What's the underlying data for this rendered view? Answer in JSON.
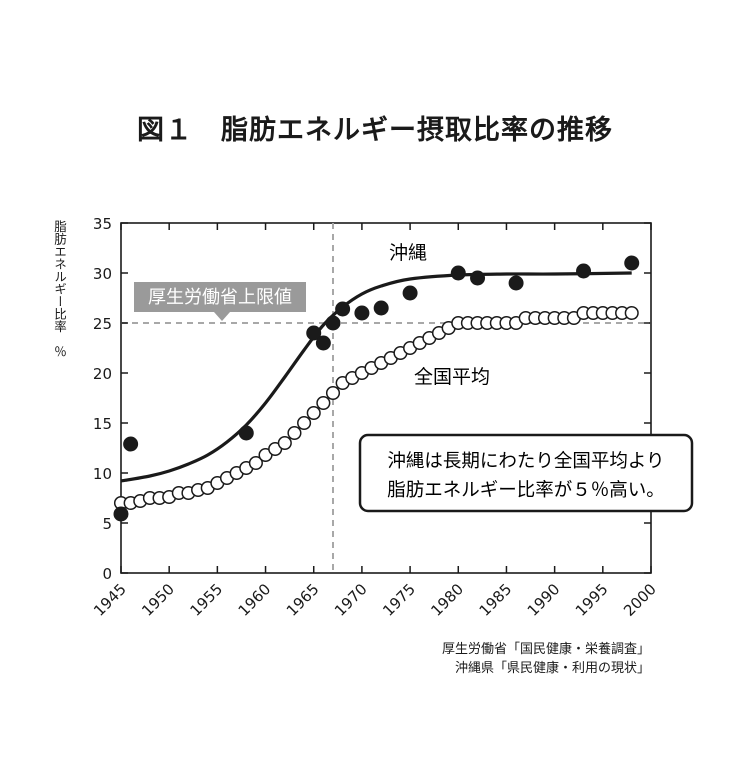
{
  "figure_title": "図１　脂肪エネルギー摂取比率の推移",
  "chart_data": {
    "type": "scatter",
    "ylabel": "脂肪エネルギー比率　％",
    "xlabel": "",
    "xlim": [
      1945,
      2000
    ],
    "ylim": [
      0,
      35
    ],
    "x_ticks": [
      "1945",
      "1950",
      "1955",
      "1960",
      "1965",
      "1970",
      "1975",
      "1980",
      "1985",
      "1990",
      "1995",
      "2000"
    ],
    "y_ticks": [
      "0",
      "5",
      "10",
      "15",
      "20",
      "25",
      "30",
      "35"
    ],
    "grid": false,
    "series": [
      {
        "name": "沖縄",
        "marker": "filled-circle",
        "color": "#1a1a1a",
        "points": [
          [
            1945,
            5.9
          ],
          [
            1946,
            12.9
          ],
          [
            1958,
            14
          ],
          [
            1965,
            24
          ],
          [
            1966,
            23
          ],
          [
            1967,
            25
          ],
          [
            1968,
            26.4
          ],
          [
            1970,
            26
          ],
          [
            1972,
            26.5
          ],
          [
            1975,
            28
          ],
          [
            1980,
            30
          ],
          [
            1982,
            29.5
          ],
          [
            1986,
            29
          ],
          [
            1993,
            30.2
          ],
          [
            1998,
            31
          ]
        ],
        "trend": [
          [
            1945,
            9.2
          ],
          [
            1948,
            9.7
          ],
          [
            1950,
            10.2
          ],
          [
            1952,
            10.9
          ],
          [
            1954,
            11.8
          ],
          [
            1956,
            13.1
          ],
          [
            1958,
            14.8
          ],
          [
            1960,
            17.0
          ],
          [
            1962,
            19.6
          ],
          [
            1964,
            22.3
          ],
          [
            1966,
            24.8
          ],
          [
            1968,
            26.6
          ],
          [
            1970,
            27.9
          ],
          [
            1972,
            28.7
          ],
          [
            1975,
            29.4
          ],
          [
            1980,
            29.8
          ],
          [
            1985,
            29.9
          ],
          [
            1990,
            29.9
          ],
          [
            1998,
            30.0
          ]
        ]
      },
      {
        "name": "全国平均",
        "marker": "open-circle",
        "color": "#1a1a1a",
        "points": [
          [
            1945,
            7
          ],
          [
            1946,
            7
          ],
          [
            1947,
            7.2
          ],
          [
            1948,
            7.5
          ],
          [
            1949,
            7.5
          ],
          [
            1950,
            7.6
          ],
          [
            1951,
            8
          ],
          [
            1952,
            8
          ],
          [
            1953,
            8.3
          ],
          [
            1954,
            8.5
          ],
          [
            1955,
            9
          ],
          [
            1956,
            9.5
          ],
          [
            1957,
            10
          ],
          [
            1958,
            10.5
          ],
          [
            1959,
            11
          ],
          [
            1960,
            11.8
          ],
          [
            1961,
            12.4
          ],
          [
            1962,
            13
          ],
          [
            1963,
            14
          ],
          [
            1964,
            15
          ],
          [
            1965,
            16
          ],
          [
            1966,
            17
          ],
          [
            1967,
            18
          ],
          [
            1968,
            19
          ],
          [
            1969,
            19.5
          ],
          [
            1970,
            20
          ],
          [
            1971,
            20.5
          ],
          [
            1972,
            21
          ],
          [
            1973,
            21.5
          ],
          [
            1974,
            22
          ],
          [
            1975,
            22.5
          ],
          [
            1976,
            23
          ],
          [
            1977,
            23.5
          ],
          [
            1978,
            24
          ],
          [
            1979,
            24.5
          ],
          [
            1980,
            25
          ],
          [
            1981,
            25
          ],
          [
            1982,
            25
          ],
          [
            1983,
            25
          ],
          [
            1984,
            25
          ],
          [
            1985,
            25
          ],
          [
            1986,
            25
          ],
          [
            1987,
            25.5
          ],
          [
            1988,
            25.5
          ],
          [
            1989,
            25.5
          ],
          [
            1990,
            25.5
          ],
          [
            1991,
            25.5
          ],
          [
            1992,
            25.5
          ],
          [
            1993,
            26
          ],
          [
            1994,
            26
          ],
          [
            1995,
            26
          ],
          [
            1996,
            26
          ],
          [
            1997,
            26
          ],
          [
            1998,
            26
          ]
        ]
      }
    ],
    "reference_lines": [
      {
        "axis": "y",
        "value": 25,
        "style": "dashed",
        "label": "厚生労働省上限値"
      },
      {
        "axis": "x",
        "value": 1967,
        "style": "dashed"
      }
    ],
    "callout": "沖縄は長期にわたり全国平均より脂肪エネルギー比率が５％高い。",
    "callout_lines": [
      "沖縄は長期にわたり全国平均より",
      "脂肪エネルギー比率が５％高い。"
    ]
  },
  "source": [
    "厚生労働省「国民健康・栄養調査」",
    "沖縄県「県民健康・利用の現状」"
  ]
}
